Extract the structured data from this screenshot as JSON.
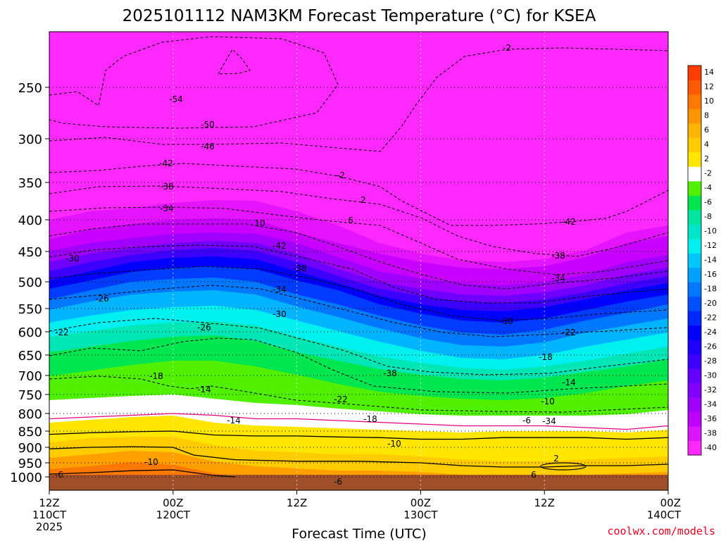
{
  "chart_data": {
    "type": "heatmap",
    "title": "2025101112 NAM3KM Forecast Temperature (°C) for KSEA",
    "xlabel": "Forecast Time (UTC)",
    "ylabel": "",
    "credit": "coolwx.com/models",
    "xlim": [
      0,
      60
    ],
    "ylim": [
      1000,
      200
    ],
    "x_ticks": [
      {
        "hour": 0,
        "lines": [
          "12Z",
          "110CT",
          "2025"
        ]
      },
      {
        "hour": 12,
        "lines": [
          "00Z",
          "120CT"
        ]
      },
      {
        "hour": 24,
        "lines": [
          "12Z"
        ]
      },
      {
        "hour": 36,
        "lines": [
          "00Z",
          "130CT"
        ]
      },
      {
        "hour": 48,
        "lines": [
          "12Z"
        ]
      },
      {
        "hour": 60,
        "lines": [
          "00Z",
          "140CT"
        ]
      }
    ],
    "y_ticks": [
      250,
      300,
      350,
      400,
      450,
      500,
      550,
      600,
      650,
      700,
      750,
      800,
      850,
      900,
      950,
      1000
    ],
    "colorbar": {
      "levels": [
        -40,
        -38,
        -36,
        -34,
        -32,
        -30,
        -28,
        -26,
        -24,
        -22,
        -20,
        -18,
        -16,
        -14,
        -12,
        -10,
        -8,
        -6,
        -4,
        -2,
        2,
        4,
        6,
        8,
        10,
        12,
        14
      ],
      "colors": [
        "#ff28ff",
        "#dc14ff",
        "#be00ff",
        "#a000ff",
        "#8200ff",
        "#6400ff",
        "#3c00ff",
        "#1e00ff",
        "#0000ff",
        "#0028ff",
        "#0050ff",
        "#0078ff",
        "#00a0ff",
        "#00c8ff",
        "#00f0f0",
        "#00e6c8",
        "#00e6a0",
        "#00e650",
        "#50f000",
        "#ffffff",
        "#ffe600",
        "#ffcc00",
        "#ffb400",
        "#ff9600",
        "#ff7800",
        "#ff5a00",
        "#ff3c00"
      ]
    },
    "series": [
      {
        "name": "-2 (magenta)",
        "color": "#e6007e",
        "points": [
          [
            0,
            815
          ],
          [
            4,
            810
          ],
          [
            8,
            805
          ],
          [
            12,
            800
          ],
          [
            16,
            805
          ],
          [
            20,
            815
          ],
          [
            24,
            815
          ],
          [
            28,
            820
          ],
          [
            32,
            825
          ],
          [
            36,
            830
          ],
          [
            40,
            835
          ],
          [
            44,
            835
          ],
          [
            48,
            835
          ],
          [
            52,
            840
          ],
          [
            56,
            845
          ],
          [
            60,
            835
          ]
        ]
      },
      {
        "name": "2",
        "color": "#000000",
        "points": [
          [
            0,
            860
          ],
          [
            4,
            855
          ],
          [
            8,
            852
          ],
          [
            12,
            850
          ],
          [
            16,
            862
          ],
          [
            20,
            865
          ],
          [
            24,
            865
          ],
          [
            28,
            868
          ],
          [
            32,
            870
          ],
          [
            36,
            875
          ],
          [
            40,
            875
          ],
          [
            44,
            870
          ],
          [
            48,
            870
          ],
          [
            52,
            870
          ],
          [
            56,
            875
          ],
          [
            60,
            870
          ]
        ]
      },
      {
        "name": "6",
        "color": "#000000",
        "points": [
          [
            0,
            905
          ],
          [
            4,
            900
          ],
          [
            8,
            898
          ],
          [
            12,
            900
          ],
          [
            14,
            925
          ],
          [
            18,
            940
          ],
          [
            24,
            945
          ],
          [
            30,
            945
          ],
          [
            36,
            950
          ],
          [
            40,
            960
          ],
          [
            44,
            965
          ],
          [
            48,
            965
          ],
          [
            52,
            960
          ],
          [
            56,
            960
          ],
          [
            60,
            955
          ]
        ]
      },
      {
        "name": "10",
        "color": "#000000",
        "points": [
          [
            0,
            990
          ],
          [
            4,
            985
          ],
          [
            8,
            978
          ],
          [
            12,
            975
          ],
          [
            14,
            985
          ],
          [
            16,
            995
          ],
          [
            18,
            1000
          ]
        ]
      }
    ],
    "annotations": [
      "-54",
      "-50",
      "-46",
      "-42",
      "-38",
      "-34",
      "-30",
      "-26",
      "-22",
      "-18",
      "-14",
      "-10",
      "-6",
      "-2",
      "2",
      "6",
      "10",
      "-42",
      "-38",
      "-34",
      "-30",
      "-26",
      "-22",
      "-18",
      "-14",
      "-10",
      "-6",
      "-2",
      "-42",
      "-38",
      "-34",
      "-30",
      "-22",
      "-18",
      "-14",
      "-10",
      "-6",
      "2",
      "6",
      "-38",
      "-34",
      "-30",
      "-22",
      "-18",
      "-14",
      "-10",
      "-6",
      "2",
      "6",
      "2",
      "-6",
      "2",
      "6",
      "6"
    ]
  }
}
